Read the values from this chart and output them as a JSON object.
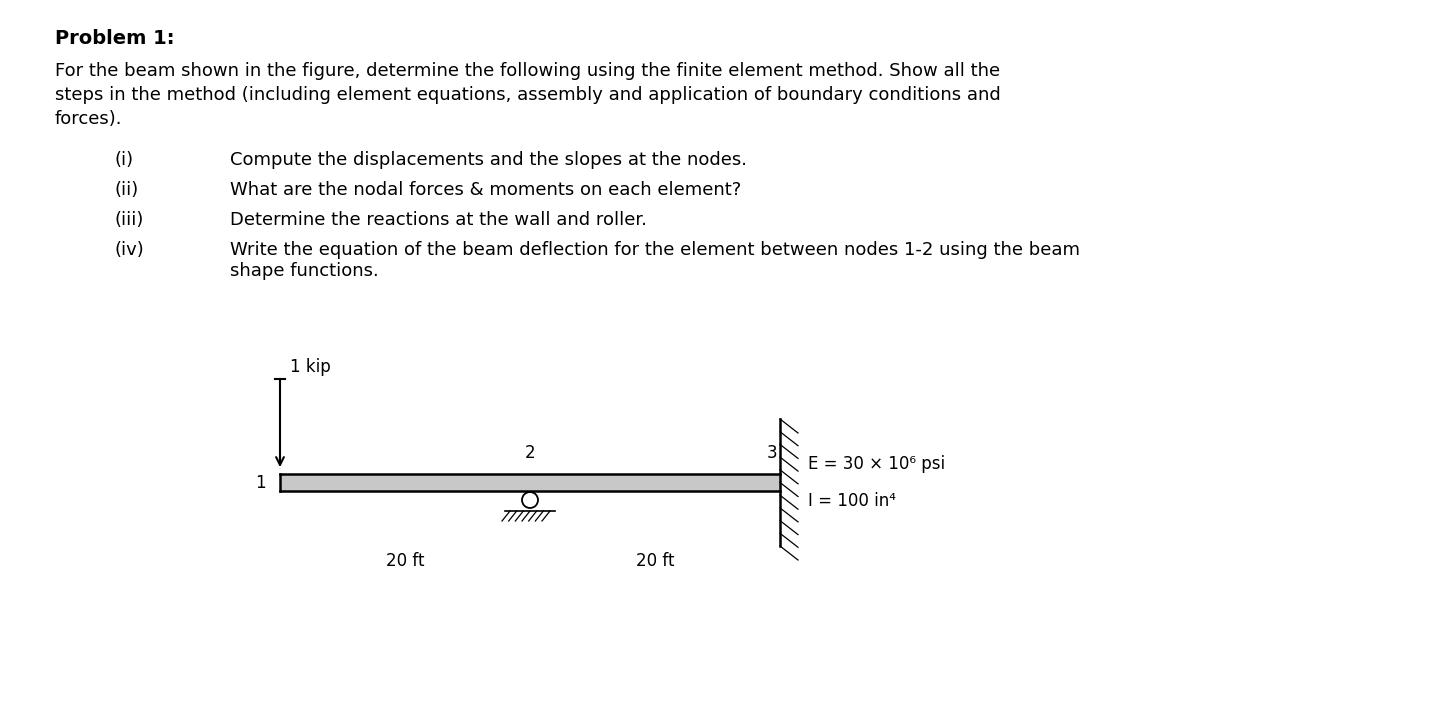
{
  "title": "Problem 1:",
  "background_color": "#ffffff",
  "text_color": "#000000",
  "main_text_line1": "For the beam shown in the figure, determine the following using the finite element method. Show all the",
  "main_text_line2": "steps in the method (including element equations, assembly and application of boundary conditions and",
  "main_text_line3": "forces).",
  "item_nums": [
    "(i)",
    "(ii)",
    "(iii)",
    "(iv)"
  ],
  "item_texts": [
    "Compute the displacements and the slopes at the nodes.",
    "What are the nodal forces & moments on each element?",
    "Determine the reactions at the wall and roller.",
    "Write the equation of the beam deflection for the element between nodes 1-2 using the beam"
  ],
  "item_iv_line2": "shape functions.",
  "load_label": "1 kip",
  "node1_label": "1",
  "node2_label": "2",
  "node3_label": "3",
  "dist1_label": "20 ft",
  "dist2_label": "20 ft",
  "E_label": "E = 30 × 10⁶ psi",
  "I_label": "I = 100 in⁴",
  "font_size_title": 14,
  "font_size_body": 13,
  "font_size_diagram": 12
}
